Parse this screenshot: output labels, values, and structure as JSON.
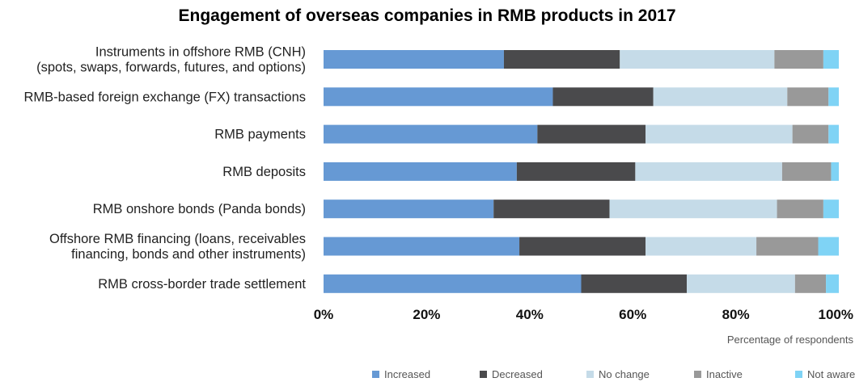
{
  "chart_data": {
    "type": "bar",
    "orientation": "horizontal",
    "stacked": true,
    "title": "Engagement of overseas companies in RMB products in 2017",
    "xlabel": "Percentage of respondents",
    "ylabel": "",
    "xlim": [
      0,
      100
    ],
    "x_ticks": [
      "0%",
      "20%",
      "40%",
      "60%",
      "80%",
      "100%"
    ],
    "grid": false,
    "legend_position": "bottom-right",
    "categories": [
      [
        "Instruments in offshore RMB (CNH)",
        "(spots, swaps, forwards, futures, and options)"
      ],
      [
        "RMB-based foreign exchange (FX) transactions"
      ],
      [
        "RMB payments"
      ],
      [
        "RMB deposits"
      ],
      [
        "RMB onshore bonds (Panda bonds)"
      ],
      [
        "Offshore RMB financing (loans, receivables",
        "financing, bonds and other instruments)"
      ],
      [
        "RMB cross-border trade settlement"
      ]
    ],
    "series": [
      {
        "name": "Increased",
        "color": "#6699d4",
        "values": [
          35,
          44.5,
          41.5,
          37.5,
          33,
          38,
          50
        ]
      },
      {
        "name": "Decreased",
        "color": "#4a4a4c",
        "values": [
          22.5,
          19.5,
          21,
          23,
          22.5,
          24.5,
          20.5
        ]
      },
      {
        "name": "No change",
        "color": "#c5dbe8",
        "values": [
          30,
          26,
          28.5,
          28.5,
          32.5,
          21.5,
          21
        ]
      },
      {
        "name": "Inactive",
        "color": "#999999",
        "values": [
          9.5,
          8,
          7,
          9.5,
          9,
          12,
          6
        ]
      },
      {
        "name": "Not aware",
        "color": "#7fd3f5",
        "values": [
          3,
          2,
          2,
          1.5,
          3,
          4,
          2.5
        ]
      }
    ]
  }
}
